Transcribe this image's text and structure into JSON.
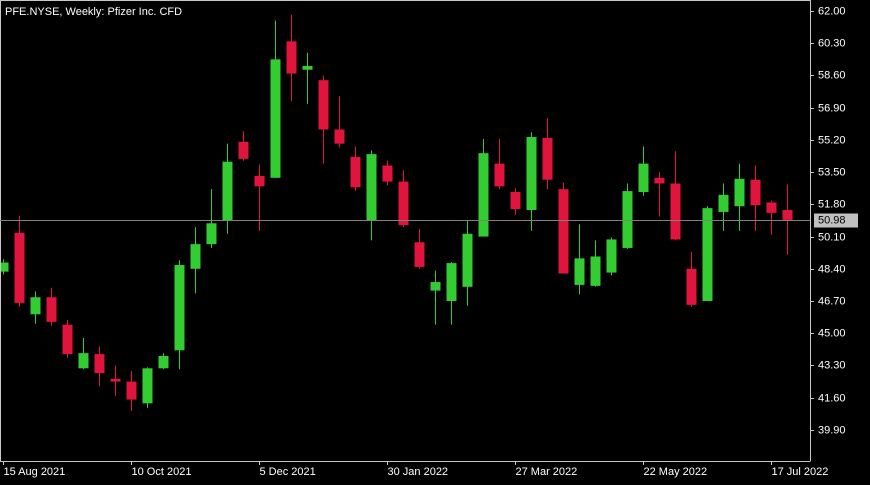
{
  "chart_data": {
    "type": "candlestick",
    "title": "PFE.NYSE, Weekly:  Pfizer Inc. CFD",
    "categories": [
      "15 Aug 2021",
      null,
      null,
      null,
      null,
      null,
      null,
      null,
      "10 Oct 2021",
      null,
      null,
      null,
      null,
      null,
      null,
      null,
      "5 Dec 2021",
      null,
      null,
      null,
      null,
      null,
      null,
      null,
      "30 Jan 2022",
      null,
      null,
      null,
      null,
      null,
      null,
      null,
      "27 Mar 2022",
      null,
      null,
      null,
      null,
      null,
      null,
      null,
      "22 May 2022",
      null,
      null,
      null,
      null,
      null,
      null,
      null,
      "17 Jul 2022",
      null
    ],
    "series": [
      {
        "up_color": "#33cc33",
        "down_color": "#e0143c",
        "open": [
          48.25,
          50.3,
          46.0,
          46.9,
          45.45,
          43.15,
          43.9,
          42.6,
          42.45,
          41.3,
          43.15,
          44.1,
          48.4,
          49.7,
          50.95,
          55.1,
          53.3,
          53.2,
          60.4,
          58.9,
          58.35,
          55.75,
          54.3,
          50.95,
          53.85,
          53.0,
          49.8,
          47.25,
          46.7,
          47.45,
          50.1,
          53.95,
          52.45,
          51.5,
          55.3,
          52.6,
          47.55,
          47.5,
          48.2,
          49.5,
          52.45,
          53.2,
          52.9,
          48.4,
          46.7,
          51.4,
          51.7,
          53.1,
          51.9,
          51.5
        ],
        "high": [
          48.9,
          51.2,
          47.2,
          47.4,
          45.7,
          44.75,
          44.3,
          43.3,
          43.0,
          43.2,
          43.95,
          48.85,
          50.6,
          52.6,
          55.0,
          55.65,
          53.9,
          61.5,
          61.8,
          59.8,
          58.6,
          57.5,
          54.85,
          54.65,
          54.1,
          53.6,
          50.5,
          48.3,
          48.75,
          50.95,
          55.25,
          55.25,
          52.65,
          55.6,
          56.35,
          52.95,
          50.75,
          49.9,
          50.05,
          52.9,
          54.85,
          53.5,
          54.6,
          49.3,
          51.7,
          52.9,
          53.95,
          53.85,
          52.0,
          52.85
        ],
        "low": [
          48.1,
          46.4,
          45.5,
          45.4,
          43.7,
          43.1,
          42.2,
          41.7,
          40.9,
          41.05,
          43.1,
          43.1,
          47.1,
          49.5,
          50.25,
          54.1,
          50.4,
          53.2,
          57.25,
          57.1,
          53.95,
          54.8,
          52.5,
          49.9,
          52.8,
          50.6,
          48.4,
          45.45,
          45.45,
          46.45,
          50.1,
          52.6,
          51.25,
          50.4,
          52.6,
          48.15,
          47.05,
          47.45,
          48.05,
          49.45,
          52.25,
          51.15,
          49.9,
          46.4,
          46.7,
          50.4,
          50.4,
          50.4,
          50.2,
          49.15
        ],
        "close": [
          48.73,
          46.6,
          46.9,
          45.6,
          43.9,
          43.95,
          42.9,
          42.45,
          41.5,
          43.15,
          43.8,
          48.6,
          49.7,
          50.8,
          54.05,
          54.2,
          52.75,
          59.45,
          58.7,
          59.1,
          55.75,
          55.0,
          52.7,
          54.45,
          53.0,
          50.7,
          48.5,
          47.7,
          48.7,
          50.25,
          54.5,
          52.75,
          51.55,
          55.35,
          53.1,
          48.15,
          48.95,
          49.05,
          49.95,
          52.5,
          53.95,
          52.9,
          49.95,
          46.5,
          51.6,
          52.3,
          53.15,
          51.75,
          51.35,
          50.98
        ]
      }
    ],
    "last_price": 50.98,
    "ylim": [
      38.26,
      62.58
    ],
    "yticks": [
      {
        "value": 62,
        "label": "62.00"
      },
      {
        "value": 60.3,
        "label": "60.30"
      },
      {
        "value": 58.6,
        "label": "58.60"
      },
      {
        "value": 56.9,
        "label": "56.90"
      },
      {
        "value": 55.2,
        "label": "55.20"
      },
      {
        "value": 53.5,
        "label": "53.50"
      },
      {
        "value": 51.8,
        "label": "51.80"
      },
      {
        "value": 50.1,
        "label": "50.10"
      },
      {
        "value": 48.4,
        "label": "48.40"
      },
      {
        "value": 46.7,
        "label": "46.70"
      },
      {
        "value": 45,
        "label": "45.00"
      },
      {
        "value": 43.3,
        "label": "43.30"
      },
      {
        "value": 41.6,
        "label": "41.60"
      },
      {
        "value": 39.9,
        "label": "39.90"
      }
    ]
  }
}
